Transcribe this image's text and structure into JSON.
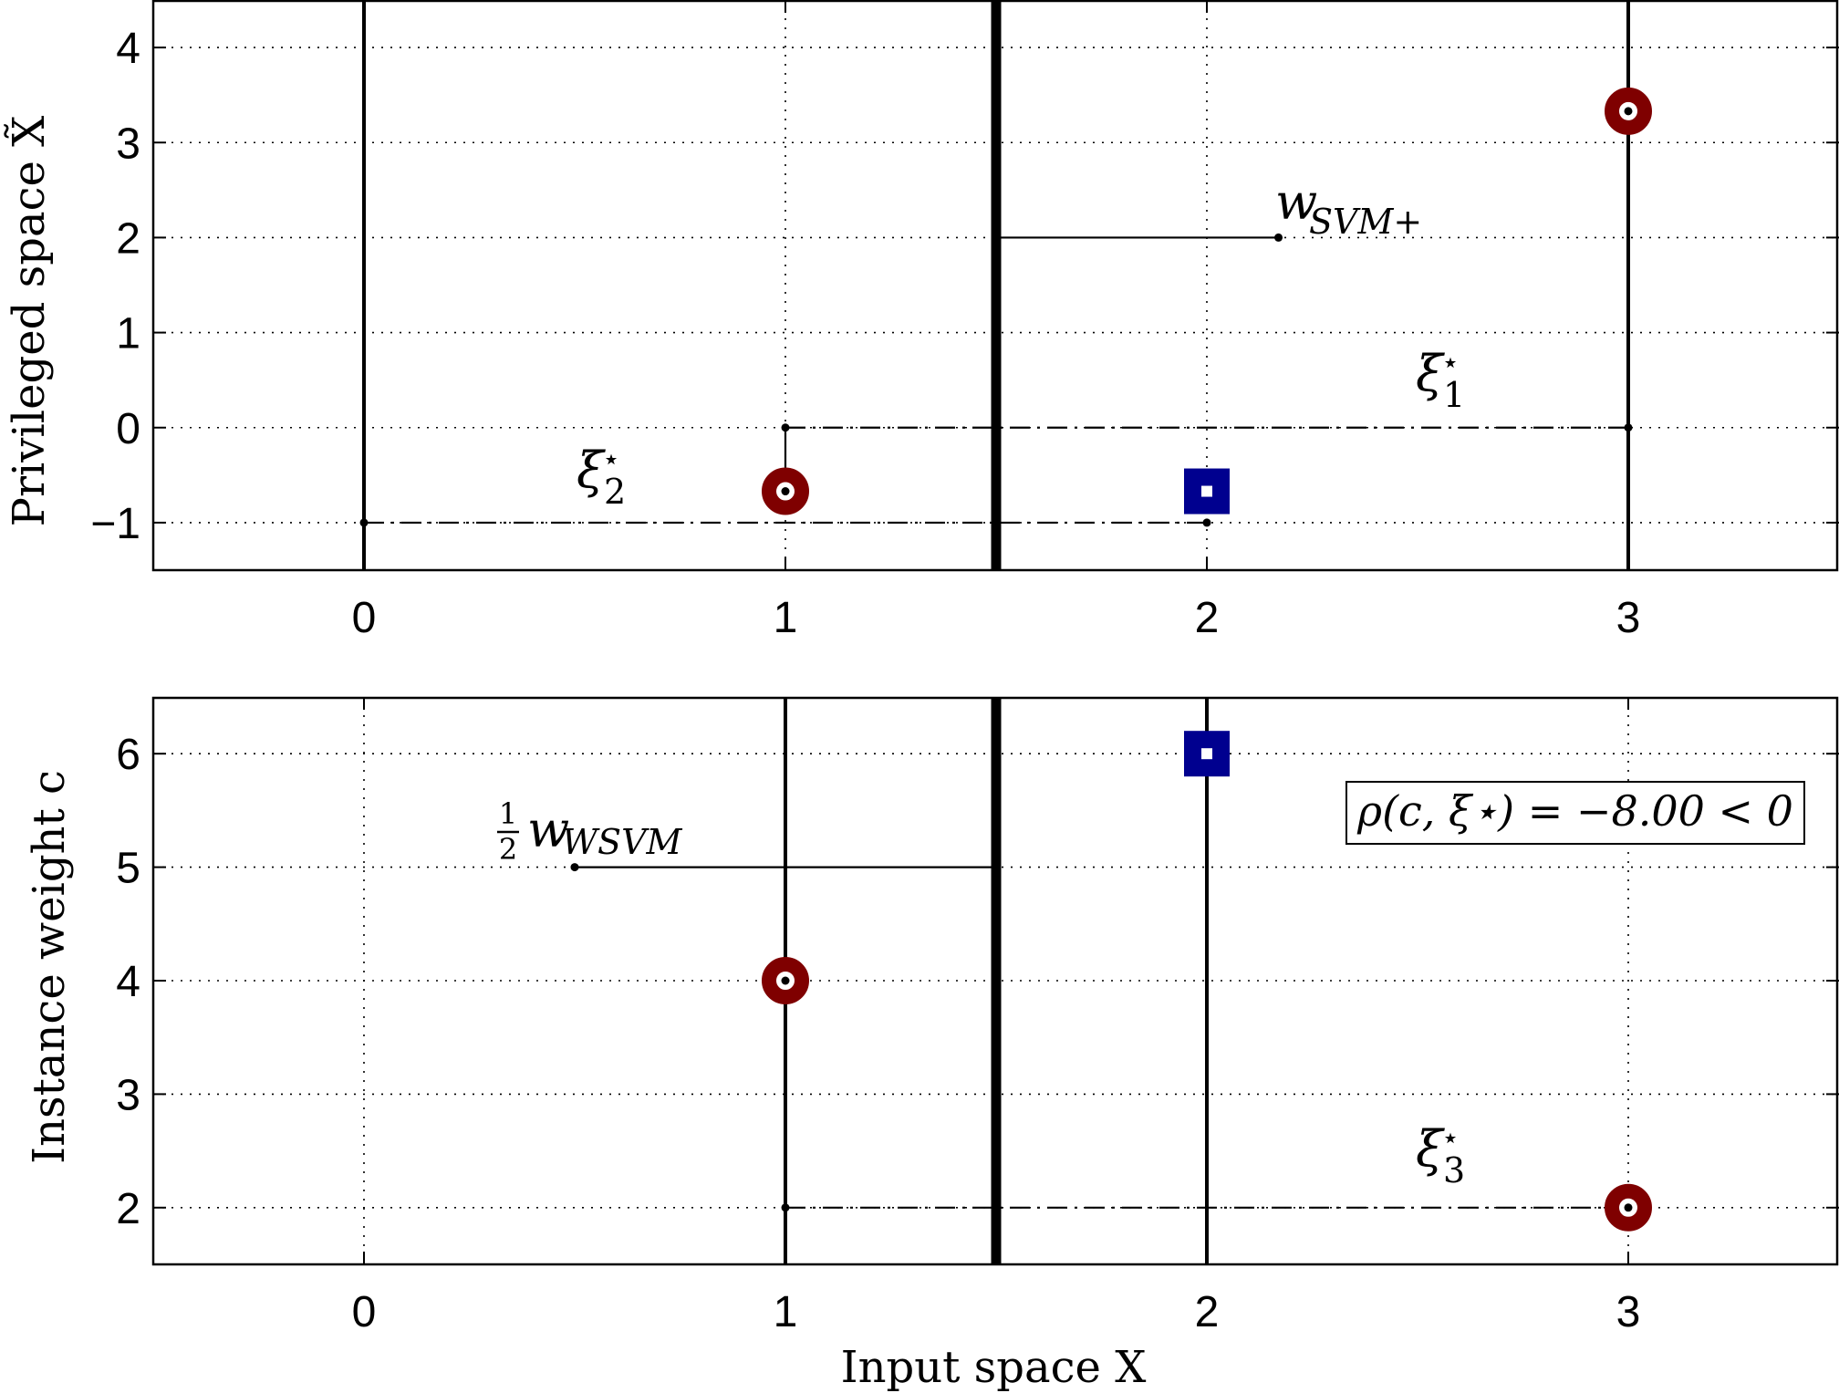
{
  "chart_data": [
    {
      "type": "scatter",
      "panel": "top",
      "ylabel": "Privileged space X̃",
      "xlabel": "",
      "xlim": [
        -0.5,
        3.5
      ],
      "ylim": [
        -1.5,
        4.5
      ],
      "xticks": [
        "0",
        "1",
        "2",
        "3"
      ],
      "yticks": [
        "−1",
        "0",
        "1",
        "2",
        "3",
        "4"
      ],
      "grid": true,
      "decision_boundary_x": 1.5,
      "vertical_lines_x": [
        0,
        3
      ],
      "points": [
        {
          "x": 1,
          "y": -0.67,
          "class": "circle"
        },
        {
          "x": 2,
          "y": -0.67,
          "class": "square"
        },
        {
          "x": 3,
          "y": 3.33,
          "class": "circle"
        }
      ],
      "slack_lines": [
        {
          "y": 0,
          "from_x": 1,
          "to_x": 3
        },
        {
          "y": -1,
          "from_x": 0,
          "to_x": 2
        }
      ],
      "stem": {
        "x": 1,
        "from_y": -0.67,
        "to_y": 0
      },
      "weight_vector": {
        "from": [
          1.5,
          2
        ],
        "to": [
          2.17,
          2
        ]
      },
      "annotations": {
        "w_label": {
          "main": "w",
          "sub": "SVM+"
        },
        "xi1": {
          "main": "ξ",
          "sup": "⋆",
          "sub": "1"
        },
        "xi2": {
          "main": "ξ",
          "sup": "⋆",
          "sub": "2"
        }
      }
    },
    {
      "type": "scatter",
      "panel": "bottom",
      "ylabel": "Instance weight c",
      "xlabel": "Input space X",
      "xlim": [
        -0.5,
        3.5
      ],
      "ylim": [
        1.5,
        6.5
      ],
      "xticks": [
        "0",
        "1",
        "2",
        "3"
      ],
      "yticks": [
        "2",
        "3",
        "4",
        "5",
        "6"
      ],
      "grid": true,
      "decision_boundary_x": 1.5,
      "vertical_lines_x": [
        1,
        2
      ],
      "points": [
        {
          "x": 1,
          "y": 4,
          "class": "circle"
        },
        {
          "x": 2,
          "y": 6,
          "class": "square"
        },
        {
          "x": 3,
          "y": 2,
          "class": "circle"
        }
      ],
      "slack_lines": [
        {
          "y": 2,
          "from_x": 1,
          "to_x": 3
        }
      ],
      "weight_vector": {
        "from": [
          1.5,
          5
        ],
        "to": [
          0.5,
          5
        ]
      },
      "annotations": {
        "w_label": {
          "frac_num": "1",
          "frac_den": "2",
          "main": "w",
          "sub": "WSVM"
        },
        "xi3": {
          "main": "ξ",
          "sup": "⋆",
          "sub": "3"
        },
        "rho_box": {
          "text": "ρ(c, ξ⋆) = −8.00 < 0"
        }
      }
    }
  ],
  "colors": {
    "circle": "#7f0000",
    "square": "#00008f",
    "line": "#000000"
  }
}
